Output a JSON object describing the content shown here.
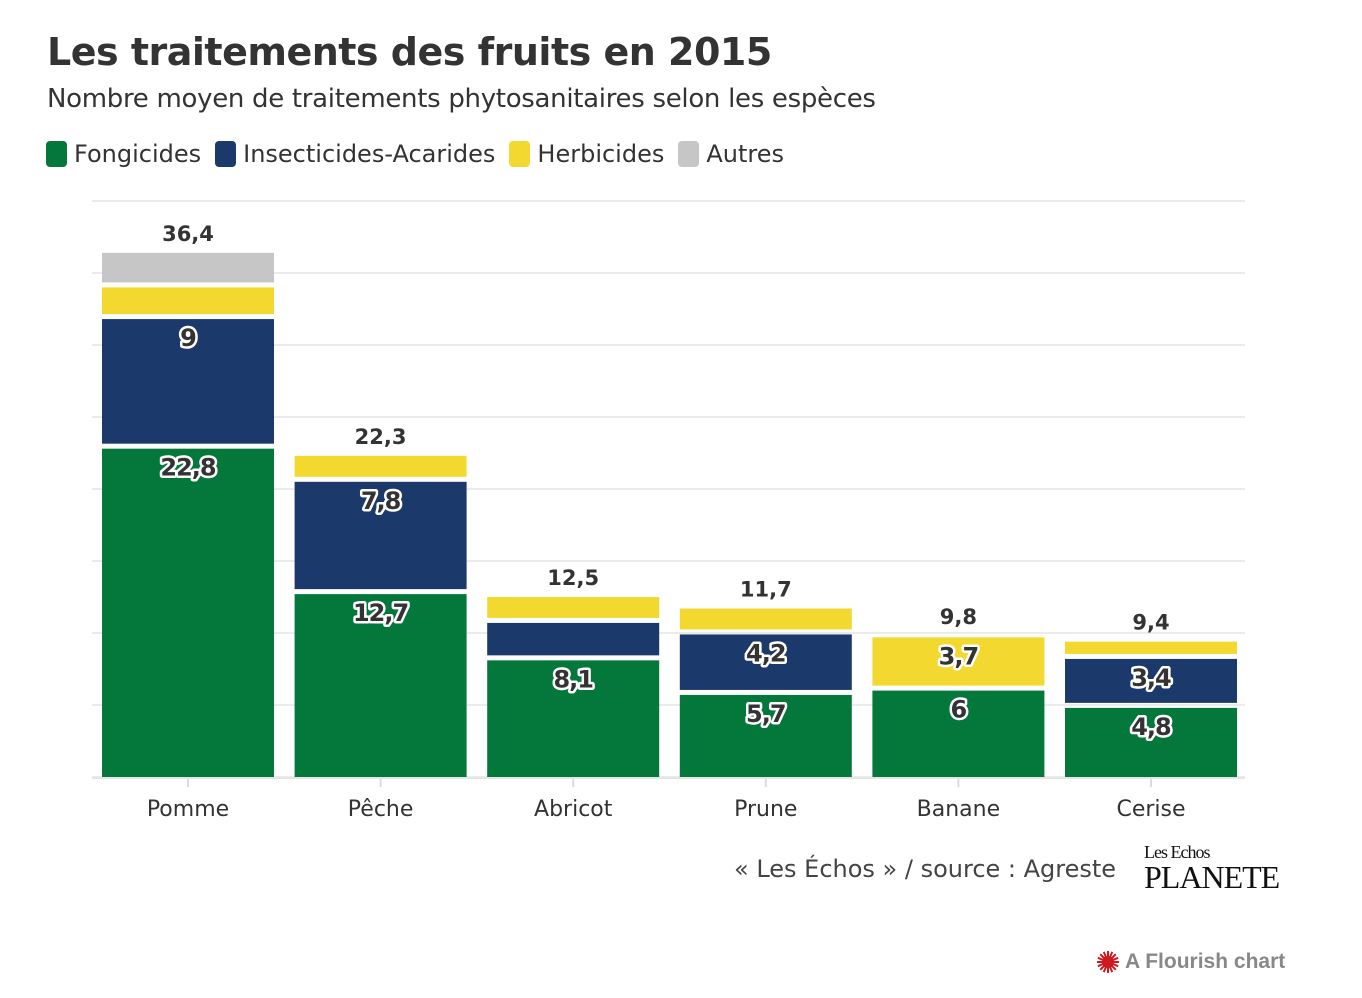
{
  "chart_data": {
    "type": "bar",
    "stacked": true,
    "title": "Les traitements des fruits en 2015",
    "subtitle": "Nombre moyen de traitements phytosanitaires selon les espèces",
    "categories": [
      "Pomme",
      "Pêche",
      "Abricot",
      "Prune",
      "Banane",
      "Cerise"
    ],
    "series": [
      {
        "name": "Fongicides",
        "color": "#04773b",
        "values": [
          22.8,
          12.7,
          8.1,
          5.7,
          6,
          4.8
        ]
      },
      {
        "name": "Insecticides-Acarides",
        "color": "#1b3a6b",
        "values": [
          9,
          7.8,
          2.6,
          4.2,
          0,
          3.4
        ]
      },
      {
        "name": "Herbicides",
        "color": "#f3d92f",
        "values": [
          2.2,
          1.8,
          1.8,
          1.8,
          3.7,
          1.2
        ]
      },
      {
        "name": "Autres",
        "color": "#c6c6c6",
        "values": [
          2.4,
          0,
          0,
          0,
          0.1,
          0
        ]
      }
    ],
    "totals": [
      "36,4",
      "22,3",
      "12,5",
      "11,7",
      "9,8",
      "9,4"
    ],
    "ylim": [
      0,
      40
    ],
    "grid": true,
    "legend": "top-left",
    "xlabel": "",
    "ylabel": ""
  },
  "footer": {
    "source": "« Les Échos » / source : Agreste",
    "logo": "Les Echos PLANETE",
    "flourish": "A Flourish chart",
    "flourish_color": "#d0191f"
  }
}
